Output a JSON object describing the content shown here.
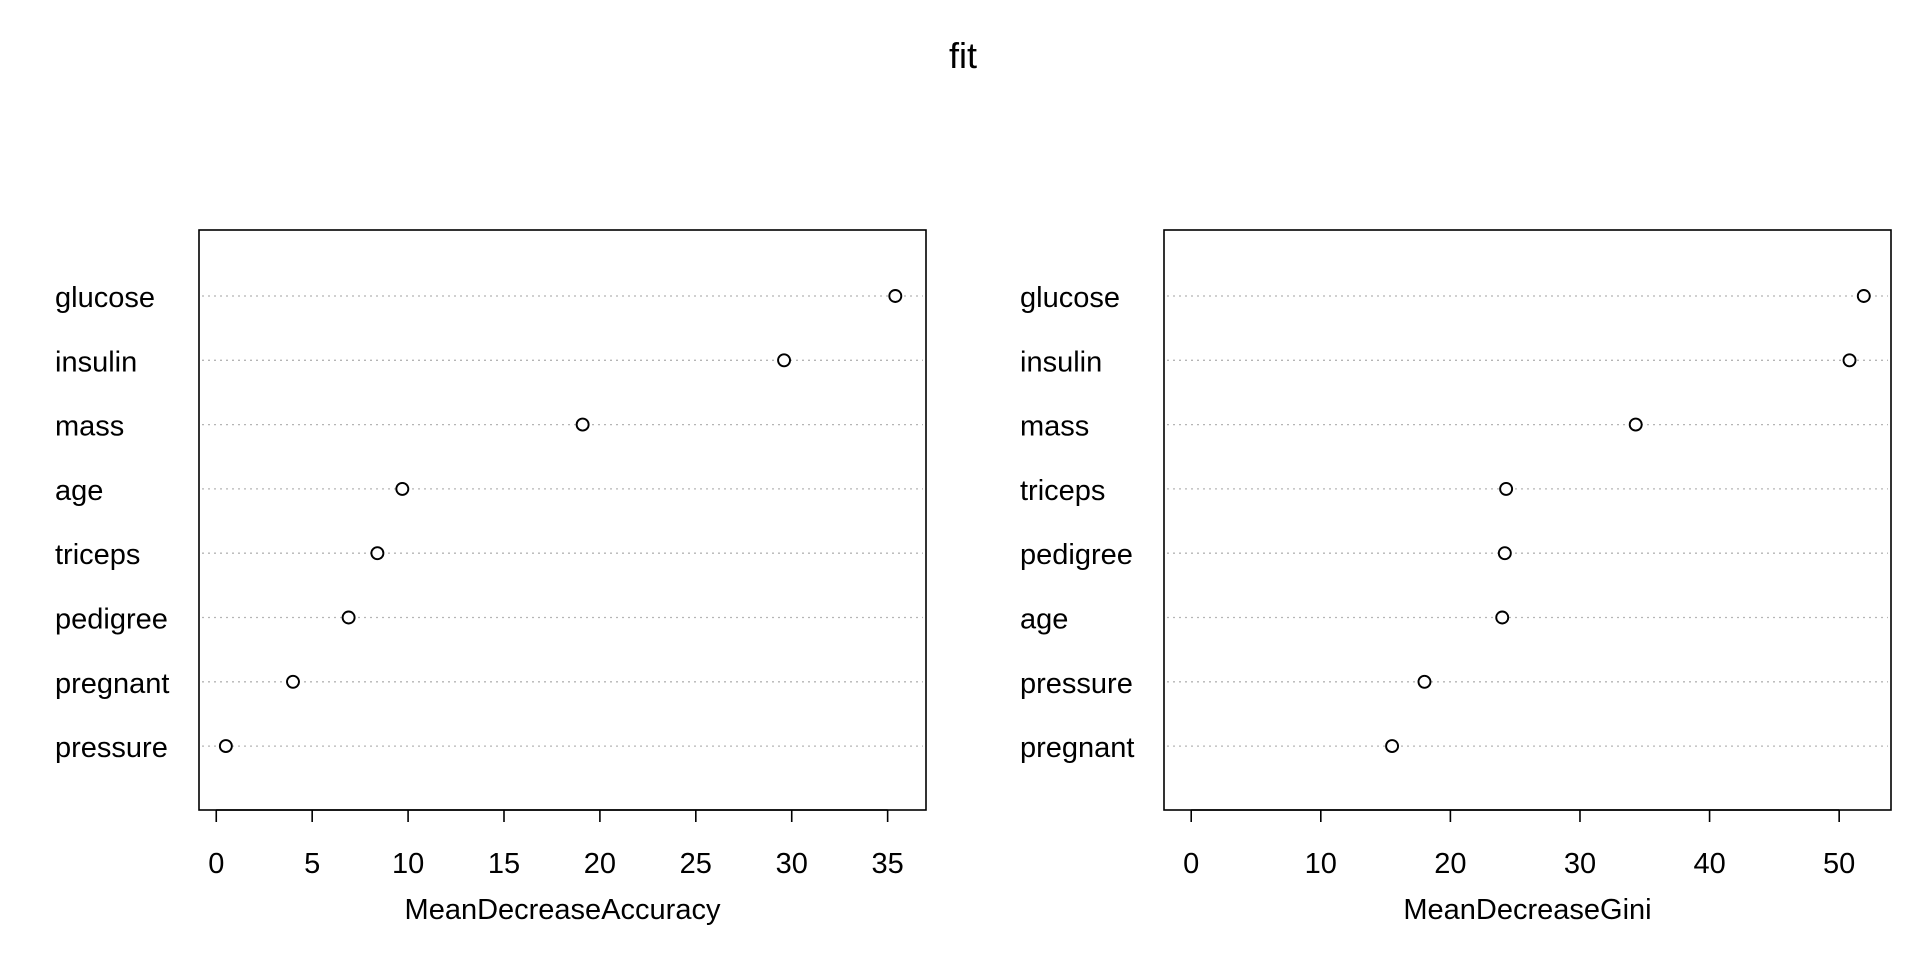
{
  "title": "fit",
  "chart_data": [
    {
      "type": "scatter",
      "variables": [
        "glucose",
        "insulin",
        "mass",
        "age",
        "triceps",
        "pedigree",
        "pregnant",
        "pressure"
      ],
      "values": [
        35.4,
        29.6,
        19.1,
        9.7,
        8.4,
        6.9,
        4.0,
        0.5
      ],
      "xlabel": "MeanDecreaseAccuracy",
      "xlim": [
        -0.9,
        37.0
      ],
      "xticks": [
        0,
        5,
        10,
        15,
        20,
        25,
        30,
        35
      ],
      "grid": "dotted horizontal"
    },
    {
      "type": "scatter",
      "variables": [
        "glucose",
        "insulin",
        "mass",
        "triceps",
        "pedigree",
        "age",
        "pressure",
        "pregnant"
      ],
      "values": [
        51.9,
        50.8,
        34.3,
        24.3,
        24.2,
        24.0,
        18.0,
        15.5
      ],
      "xlabel": "MeanDecreaseGini",
      "xlim": [
        -2.1,
        54.0
      ],
      "xticks": [
        0,
        10,
        20,
        30,
        40,
        50
      ],
      "grid": "dotted horizontal"
    }
  ]
}
